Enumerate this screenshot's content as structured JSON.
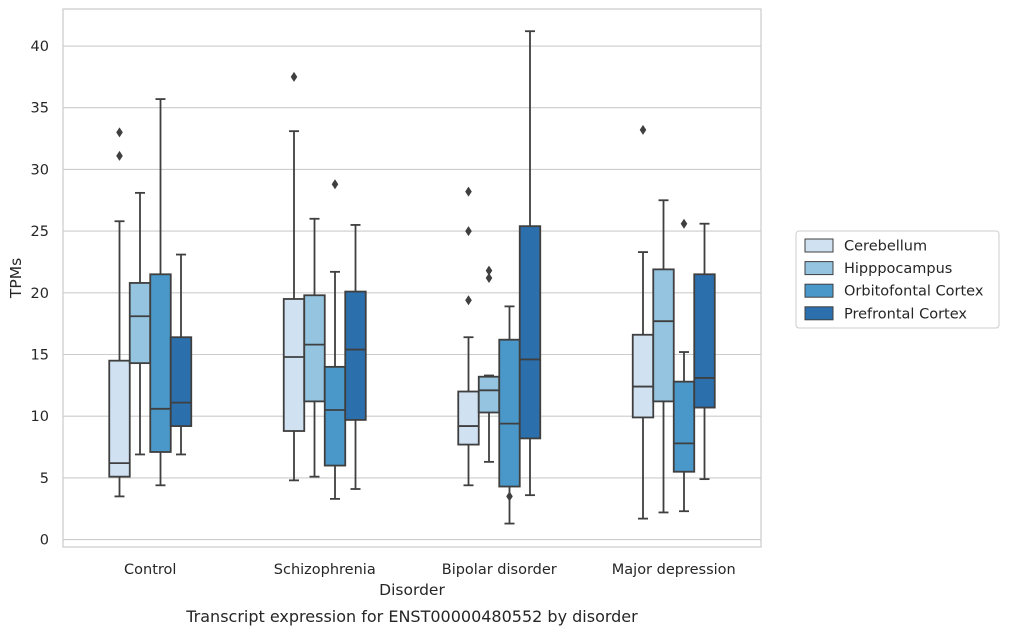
{
  "caption": "Transcript expression for ENST00000480552 by disorder",
  "chart_data": {
    "type": "box",
    "xlabel": "Disorder",
    "ylabel": "TPMs",
    "ylim": [
      -0.6,
      43
    ],
    "yticks": [
      0,
      5,
      10,
      15,
      20,
      25,
      30,
      35,
      40
    ],
    "grid": "horizontal",
    "legend_position": "right",
    "categories": [
      "Control",
      "Schizophrenia",
      "Bipolar disorder",
      "Major depression"
    ],
    "series": [
      {
        "name": "Cerebellum",
        "color": "#d0e1f2",
        "boxes": [
          {
            "whisker_low": 3.5,
            "q1": 5.1,
            "median": 6.2,
            "q3": 14.5,
            "whisker_high": 25.8,
            "outliers": [
              31.1,
              33.0
            ]
          },
          {
            "whisker_low": 4.8,
            "q1": 8.8,
            "median": 14.8,
            "q3": 19.5,
            "whisker_high": 33.1,
            "outliers": [
              37.5
            ]
          },
          {
            "whisker_low": 4.4,
            "q1": 7.7,
            "median": 9.2,
            "q3": 12.0,
            "whisker_high": 16.4,
            "outliers": [
              19.4,
              25.0,
              28.2
            ]
          },
          {
            "whisker_low": 1.7,
            "q1": 9.9,
            "median": 12.4,
            "q3": 16.6,
            "whisker_high": 23.3,
            "outliers": [
              33.2
            ]
          }
        ]
      },
      {
        "name": "Hipppocampus",
        "color": "#94c4df",
        "boxes": [
          {
            "whisker_low": 6.9,
            "q1": 14.3,
            "median": 18.1,
            "q3": 20.8,
            "whisker_high": 28.1,
            "outliers": []
          },
          {
            "whisker_low": 5.1,
            "q1": 11.2,
            "median": 15.8,
            "q3": 19.8,
            "whisker_high": 26.0,
            "outliers": []
          },
          {
            "whisker_low": 6.3,
            "q1": 10.3,
            "median": 12.1,
            "q3": 13.2,
            "whisker_high": 13.3,
            "outliers": [
              21.2,
              21.8
            ]
          },
          {
            "whisker_low": 2.2,
            "q1": 11.2,
            "median": 17.7,
            "q3": 21.9,
            "whisker_high": 27.5,
            "outliers": []
          }
        ]
      },
      {
        "name": "Orbitofontal Cortex",
        "color": "#4a98c9",
        "boxes": [
          {
            "whisker_low": 4.4,
            "q1": 7.1,
            "median": 10.6,
            "q3": 21.5,
            "whisker_high": 35.7,
            "outliers": []
          },
          {
            "whisker_low": 3.3,
            "q1": 6.0,
            "median": 10.5,
            "q3": 14.0,
            "whisker_high": 21.7,
            "outliers": [
              28.8
            ]
          },
          {
            "whisker_low": 1.3,
            "q1": 4.3,
            "median": 9.4,
            "q3": 16.2,
            "whisker_high": 18.9,
            "outliers": [
              3.5
            ]
          },
          {
            "whisker_low": 2.3,
            "q1": 5.5,
            "median": 7.8,
            "q3": 12.8,
            "whisker_high": 15.2,
            "outliers": [
              25.6
            ]
          }
        ]
      },
      {
        "name": "Prefrontal Cortex",
        "color": "#2c6fad",
        "boxes": [
          {
            "whisker_low": 6.9,
            "q1": 9.2,
            "median": 11.1,
            "q3": 16.4,
            "whisker_high": 23.1,
            "outliers": []
          },
          {
            "whisker_low": 4.1,
            "q1": 9.7,
            "median": 15.4,
            "q3": 20.1,
            "whisker_high": 25.5,
            "outliers": []
          },
          {
            "whisker_low": 3.6,
            "q1": 8.2,
            "median": 14.6,
            "q3": 25.4,
            "whisker_high": 41.2,
            "outliers": []
          },
          {
            "whisker_low": 4.9,
            "q1": 10.7,
            "median": 13.1,
            "q3": 21.5,
            "whisker_high": 25.6,
            "outliers": []
          }
        ]
      }
    ]
  }
}
